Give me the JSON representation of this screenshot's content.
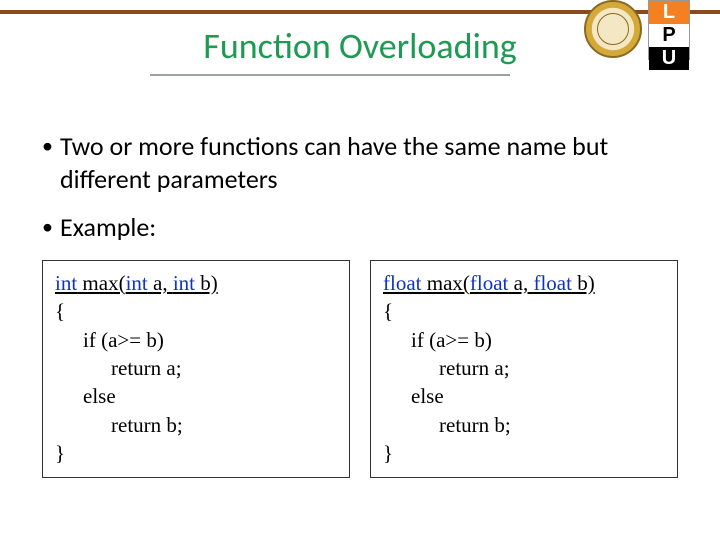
{
  "title": "Function Overloading",
  "bullets": {
    "b1": "Two or more functions can have the same name but different parameters",
    "b2": "Example:"
  },
  "logos": {
    "seal_alt": "University Seal",
    "lpu": {
      "l": "L",
      "p": "P",
      "u": "U"
    }
  },
  "code_left": {
    "kw": "int",
    "sig_rest": " max(",
    "sig_a": " a, ",
    "sig_b": " b)",
    "l_open": "{",
    "l_if": "if (a>= b)",
    "l_ret_a": "return a;",
    "l_else": "else",
    "l_ret_b": "return b;",
    "l_close": "}"
  },
  "code_right": {
    "kw": "float",
    "sig_rest": " max(",
    "sig_a": " a, ",
    "sig_b": " b)",
    "l_open": "{",
    "l_if": "if (a>= b)",
    "l_ret_a": "return a;",
    "l_else": "else",
    "l_ret_b": "return b;",
    "l_close": "}"
  },
  "colors": {
    "title_color": "#1f9a52",
    "rule_color": "#8a4a1a",
    "keyword_color": "#1033c5",
    "text_color": "#000000",
    "background": "#ffffff"
  }
}
